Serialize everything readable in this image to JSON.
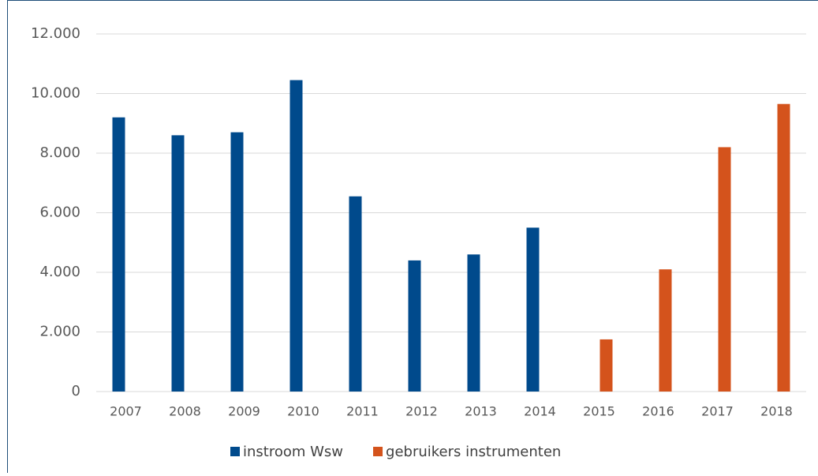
{
  "chart_data": {
    "type": "bar",
    "categories": [
      "2007",
      "2008",
      "2009",
      "2010",
      "2011",
      "2012",
      "2013",
      "2014",
      "2015",
      "2016",
      "2017",
      "2018"
    ],
    "series": [
      {
        "name": "instroom Wsw",
        "color": "#004a8c",
        "values": [
          9200,
          8600,
          8700,
          10450,
          6550,
          4400,
          4600,
          5500,
          null,
          null,
          null,
          null
        ]
      },
      {
        "name": "gebruikers instrumenten",
        "color": "#d4531c",
        "values": [
          null,
          null,
          null,
          null,
          null,
          null,
          null,
          null,
          1750,
          4100,
          8200,
          9650
        ]
      }
    ],
    "ylim": [
      0,
      12000
    ],
    "yticks": [
      0,
      {
        "value": 2000,
        "label": "2.000"
      },
      {
        "value": 4000,
        "label": "4.000"
      },
      {
        "value": 6000,
        "label": "6.000"
      },
      {
        "value": 8000,
        "label": "8.000"
      },
      {
        "value": 10000,
        "label": "10.000"
      },
      {
        "value": 12000,
        "label": "12.000"
      }
    ],
    "grid": true,
    "legend": "bottom"
  }
}
